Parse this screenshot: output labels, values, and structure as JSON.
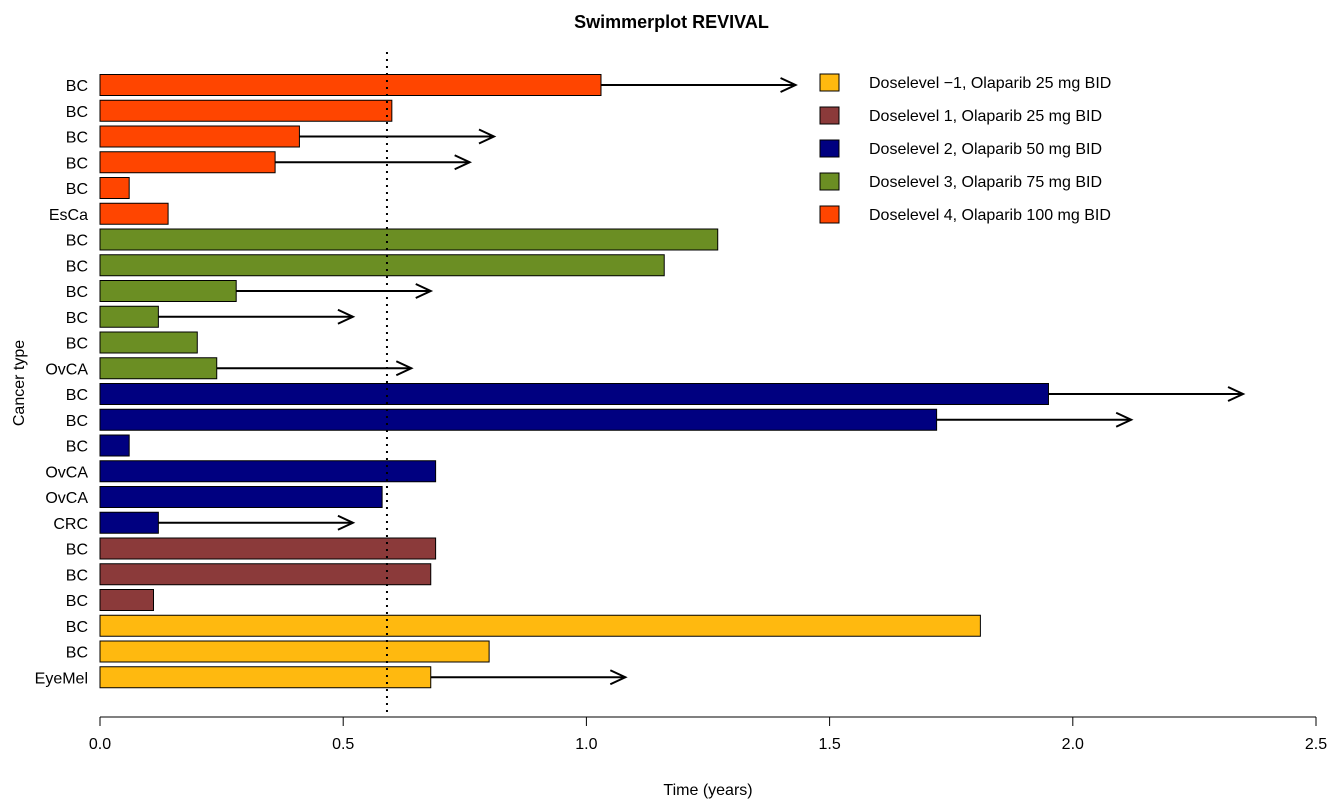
{
  "chart_data": {
    "type": "bar",
    "orientation": "horizontal",
    "title": "Swimmerplot REVIVAL",
    "xlabel": "Time (years)",
    "ylabel": "Cancer type",
    "xlim": [
      0,
      2.5
    ],
    "xticks": [
      "0.0",
      "0.5",
      "1.0",
      "1.5",
      "2.0",
      "2.5"
    ],
    "reference_line": {
      "x": 0.59,
      "style": "dotted"
    },
    "legend_position": "top-right",
    "legend": [
      {
        "label": "Doselevel −1, Olaparib 25 mg BID",
        "color": "#FFB90F"
      },
      {
        "label": "Doselevel 1, Olaparib 25 mg BID",
        "color": "#8B3A3A"
      },
      {
        "label": "Doselevel 2, Olaparib 50 mg BID",
        "color": "#000080"
      },
      {
        "label": "Doselevel 3, Olaparib 75 mg BID",
        "color": "#6B8E23"
      },
      {
        "label": "Doselevel 4, Olaparib 100 mg BID",
        "color": "#FF4500"
      }
    ],
    "bars": [
      {
        "label": "BC",
        "value": 1.03,
        "group": 4,
        "arrow": true
      },
      {
        "label": "BC",
        "value": 0.6,
        "group": 4,
        "arrow": false
      },
      {
        "label": "BC",
        "value": 0.41,
        "group": 4,
        "arrow": true
      },
      {
        "label": "BC",
        "value": 0.36,
        "group": 4,
        "arrow": true
      },
      {
        "label": "BC",
        "value": 0.06,
        "group": 4,
        "arrow": false
      },
      {
        "label": "EsCa",
        "value": 0.14,
        "group": 4,
        "arrow": false
      },
      {
        "label": "BC",
        "value": 1.27,
        "group": 3,
        "arrow": false
      },
      {
        "label": "BC",
        "value": 1.16,
        "group": 3,
        "arrow": false
      },
      {
        "label": "BC",
        "value": 0.28,
        "group": 3,
        "arrow": true
      },
      {
        "label": "BC",
        "value": 0.12,
        "group": 3,
        "arrow": true
      },
      {
        "label": "BC",
        "value": 0.2,
        "group": 3,
        "arrow": false
      },
      {
        "label": "OvCA",
        "value": 0.24,
        "group": 3,
        "arrow": true
      },
      {
        "label": "BC",
        "value": 1.95,
        "group": 2,
        "arrow": true
      },
      {
        "label": "BC",
        "value": 1.72,
        "group": 2,
        "arrow": true
      },
      {
        "label": "BC",
        "value": 0.06,
        "group": 2,
        "arrow": false
      },
      {
        "label": "OvCA",
        "value": 0.69,
        "group": 2,
        "arrow": false
      },
      {
        "label": "OvCA",
        "value": 0.58,
        "group": 2,
        "arrow": false
      },
      {
        "label": "CRC",
        "value": 0.12,
        "group": 2,
        "arrow": true
      },
      {
        "label": "BC",
        "value": 0.69,
        "group": 1,
        "arrow": false
      },
      {
        "label": "BC",
        "value": 0.68,
        "group": 1,
        "arrow": false
      },
      {
        "label": "BC",
        "value": 0.11,
        "group": 1,
        "arrow": false
      },
      {
        "label": "BC",
        "value": 1.81,
        "group": 0,
        "arrow": false
      },
      {
        "label": "BC",
        "value": 0.8,
        "group": 0,
        "arrow": false
      },
      {
        "label": "EyeMel",
        "value": 0.68,
        "group": 0,
        "arrow": true
      }
    ]
  }
}
